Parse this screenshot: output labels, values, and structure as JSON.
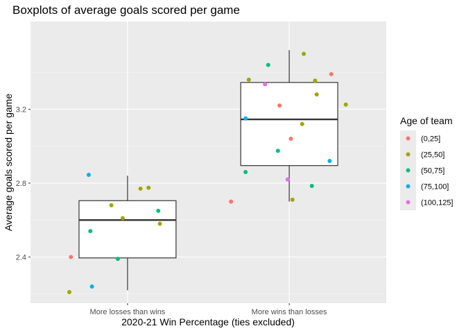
{
  "chart_data": {
    "type": "boxplot",
    "title": "Boxplots of average goals scored per game",
    "xlabel": "2020-21 Win Percentage (ties excluded)",
    "ylabel": "Average goals scored per game",
    "categories": [
      "More losses than wins",
      "More wins than losses"
    ],
    "ylim": [
      2.15,
      3.675
    ],
    "yticks": [
      2.4,
      2.8,
      3.2
    ],
    "ytick_labels": [
      "2.4",
      "2.8",
      "3.2"
    ],
    "grid": true,
    "background": "#ebebeb",
    "legend_position": "right",
    "legend": {
      "title": "Age of team",
      "groups": [
        {
          "label": "(0,25]",
          "color": "#f8766d"
        },
        {
          "label": "(25,50]",
          "color": "#a3a500"
        },
        {
          "label": "(50,75]",
          "color": "#00bf7d"
        },
        {
          "label": "(75,100]",
          "color": "#00b0f6"
        },
        {
          "label": "(100,125]",
          "color": "#e76bf3"
        }
      ]
    },
    "boxes": [
      {
        "category": "More losses than wins",
        "whisker_low": 2.22,
        "q1": 2.395,
        "median": 2.6,
        "q3": 2.705,
        "whisker_high": 2.84
      },
      {
        "category": "More wins than losses",
        "whisker_low": 2.7,
        "q1": 2.895,
        "median": 3.145,
        "q3": 3.345,
        "whisker_high": 3.52
      }
    ],
    "points": [
      {
        "category": "More losses than wins",
        "group": "(0,25]",
        "jitter": -0.35,
        "y": 2.4
      },
      {
        "category": "More losses than wins",
        "group": "(25,50]",
        "jitter": -0.36,
        "y": 2.21
      },
      {
        "category": "More losses than wins",
        "group": "(25,50]",
        "jitter": -0.1,
        "y": 2.68
      },
      {
        "category": "More losses than wins",
        "group": "(25,50]",
        "jitter": -0.03,
        "y": 2.61
      },
      {
        "category": "More losses than wins",
        "group": "(25,50]",
        "jitter": 0.08,
        "y": 2.77
      },
      {
        "category": "More losses than wins",
        "group": "(25,50]",
        "jitter": 0.13,
        "y": 2.775
      },
      {
        "category": "More losses than wins",
        "group": "(25,50]",
        "jitter": 0.2,
        "y": 2.58
      },
      {
        "category": "More losses than wins",
        "group": "(50,75]",
        "jitter": -0.23,
        "y": 2.54
      },
      {
        "category": "More losses than wins",
        "group": "(50,75]",
        "jitter": -0.06,
        "y": 2.39
      },
      {
        "category": "More losses than wins",
        "group": "(50,75]",
        "jitter": 0.19,
        "y": 2.65
      },
      {
        "category": "More losses than wins",
        "group": "(75,100]",
        "jitter": -0.24,
        "y": 2.845
      },
      {
        "category": "More losses than wins",
        "group": "(75,100]",
        "jitter": -0.22,
        "y": 2.24
      },
      {
        "category": "More wins than losses",
        "group": "(0,25]",
        "jitter": -0.36,
        "y": 2.7
      },
      {
        "category": "More wins than losses",
        "group": "(0,25]",
        "jitter": -0.06,
        "y": 3.22
      },
      {
        "category": "More wins than losses",
        "group": "(0,25]",
        "jitter": 0.01,
        "y": 3.04
      },
      {
        "category": "More wins than losses",
        "group": "(0,25]",
        "jitter": 0.26,
        "y": 3.39
      },
      {
        "category": "More wins than losses",
        "group": "(25,50]",
        "jitter": -0.25,
        "y": 3.36
      },
      {
        "category": "More wins than losses",
        "group": "(25,50]",
        "jitter": 0.02,
        "y": 2.71
      },
      {
        "category": "More wins than losses",
        "group": "(25,50]",
        "jitter": 0.08,
        "y": 3.12
      },
      {
        "category": "More wins than losses",
        "group": "(25,50]",
        "jitter": 0.09,
        "y": 3.5
      },
      {
        "category": "More wins than losses",
        "group": "(25,50]",
        "jitter": 0.16,
        "y": 3.355
      },
      {
        "category": "More wins than losses",
        "group": "(25,50]",
        "jitter": 0.17,
        "y": 3.28
      },
      {
        "category": "More wins than losses",
        "group": "(25,50]",
        "jitter": 0.35,
        "y": 3.225
      },
      {
        "category": "More wins than losses",
        "group": "(50,75]",
        "jitter": -0.27,
        "y": 2.86
      },
      {
        "category": "More wins than losses",
        "group": "(50,75]",
        "jitter": -0.13,
        "y": 3.44
      },
      {
        "category": "More wins than losses",
        "group": "(50,75]",
        "jitter": -0.07,
        "y": 2.975
      },
      {
        "category": "More wins than losses",
        "group": "(50,75]",
        "jitter": 0.14,
        "y": 2.785
      },
      {
        "category": "More wins than losses",
        "group": "(75,100]",
        "jitter": -0.27,
        "y": 3.15
      },
      {
        "category": "More wins than losses",
        "group": "(75,100]",
        "jitter": 0.25,
        "y": 2.92
      },
      {
        "category": "More wins than losses",
        "group": "(100,125]",
        "jitter": -0.15,
        "y": 3.335
      },
      {
        "category": "More wins than losses",
        "group": "(100,125]",
        "jitter": -0.01,
        "y": 2.82
      }
    ]
  }
}
